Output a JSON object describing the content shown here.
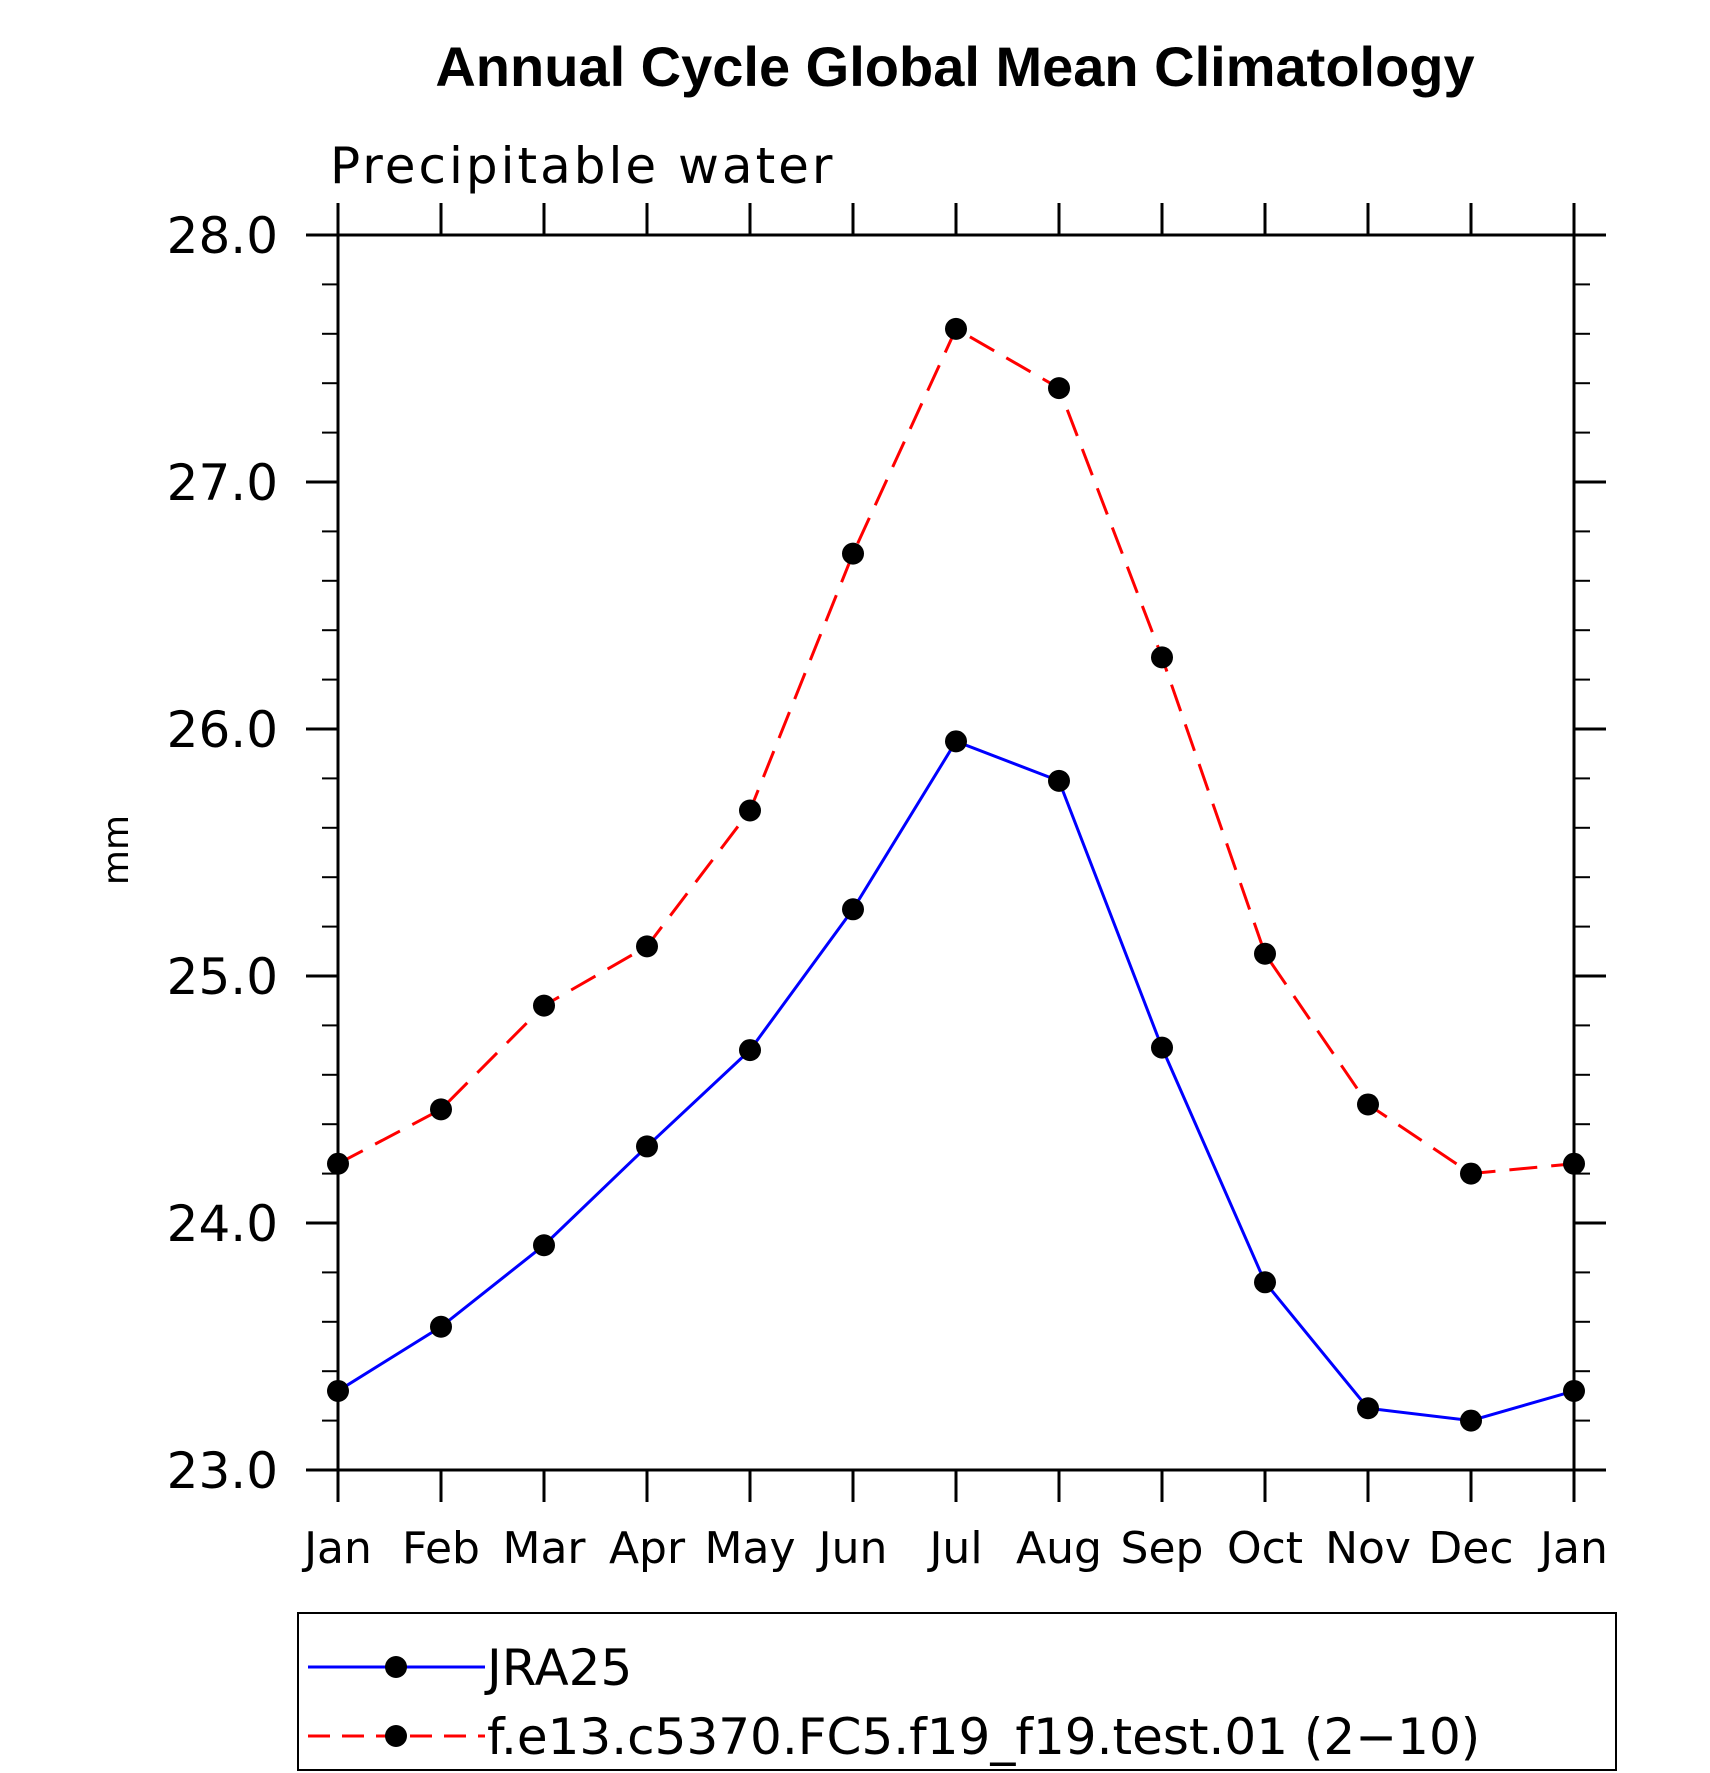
{
  "chart_data": {
    "type": "line",
    "title": "Annual Cycle Global Mean Climatology",
    "subtitle": "Precipitable water",
    "xlabel": "",
    "ylabel": "mm",
    "categories": [
      "Jan",
      "Feb",
      "Mar",
      "Apr",
      "May",
      "Jun",
      "Jul",
      "Aug",
      "Sep",
      "Oct",
      "Nov",
      "Dec",
      "Jan"
    ],
    "ylim": [
      23.0,
      28.0
    ],
    "yticks": [
      "23.0",
      "24.0",
      "25.0",
      "26.0",
      "27.0",
      "28.0"
    ],
    "grid": false,
    "legend_position": "bottom",
    "series": [
      {
        "name": "JRA25",
        "color": "#0000ff",
        "line_style": "solid",
        "marker": "filled-circle",
        "values": [
          23.32,
          23.58,
          23.91,
          24.31,
          24.7,
          25.27,
          25.95,
          25.79,
          24.71,
          23.76,
          23.25,
          23.2,
          23.32
        ]
      },
      {
        "name": "f.e13.c5370.FC5.f19_f19.test.01 (2−10)",
        "color": "#ff0000",
        "line_style": "dashed",
        "marker": "filled-circle",
        "values": [
          24.24,
          24.46,
          24.88,
          25.12,
          25.67,
          26.71,
          27.62,
          27.38,
          26.29,
          25.09,
          24.48,
          24.2,
          24.24
        ]
      }
    ]
  }
}
